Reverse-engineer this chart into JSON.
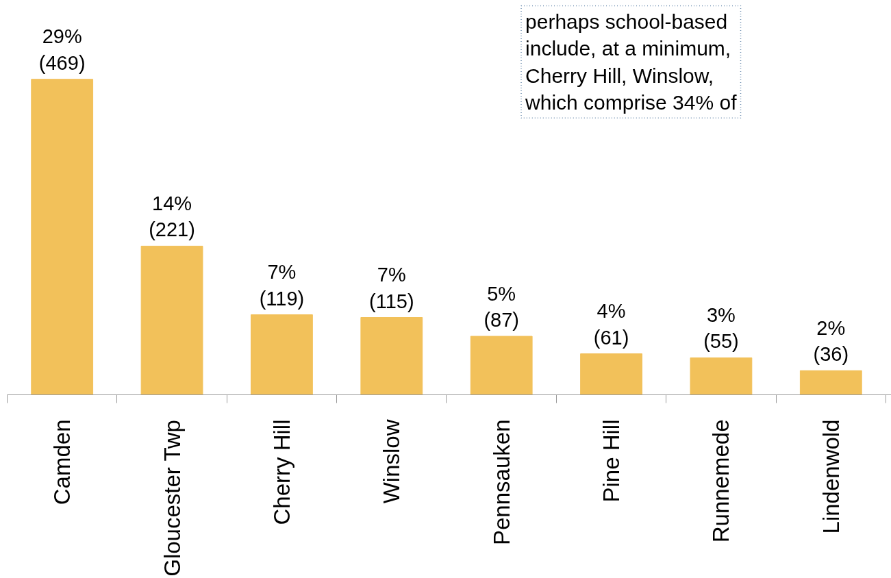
{
  "chart_data": {
    "type": "bar",
    "categories": [
      "Camden",
      "Gloucester Twp",
      "Cherry Hill",
      "Winslow",
      "Pennsauken",
      "Pine Hill",
      "Runnemede",
      "Lindenwold"
    ],
    "values": [
      469,
      221,
      119,
      115,
      87,
      61,
      55,
      36
    ],
    "value_labels": [
      "29%\n(469)",
      "14%\n(221)",
      "7%\n(119)",
      "7%\n(115)",
      "5%\n(87)",
      "4%\n(61)",
      "3%\n(55)",
      "2%\n(36)"
    ],
    "color": "#f2c15a",
    "grid": false,
    "annotations": [
      "perhaps school-based\ninclude, at a minimum,\nCherry Hill, Winslow,\nwhich comprise 34% of"
    ]
  }
}
